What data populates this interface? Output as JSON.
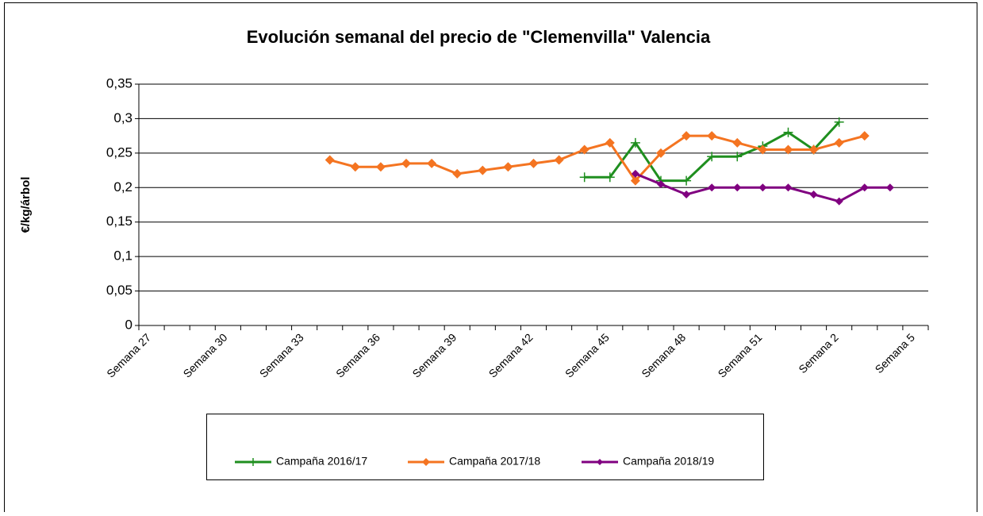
{
  "chart_data": {
    "type": "line",
    "title": "Evolución semanal del precio de \"Clemenvilla\" Valencia",
    "y_label": "€/kg/árbol",
    "categories": [
      "Semana 27",
      null,
      null,
      "Semana 30",
      null,
      null,
      "Semana 33",
      null,
      null,
      "Semana 36",
      null,
      null,
      "Semana 39",
      null,
      null,
      "Semana 42",
      null,
      null,
      "Semana 45",
      null,
      null,
      "Semana 48",
      null,
      null,
      "Semana 51",
      null,
      null,
      "Semana 2",
      null,
      null,
      "Semana 5"
    ],
    "series": [
      {
        "name": "Campaña 2016/17",
        "color": "#1f8f1f",
        "marker": "plus",
        "values": [
          null,
          null,
          null,
          null,
          null,
          null,
          null,
          null,
          null,
          null,
          null,
          null,
          null,
          null,
          null,
          null,
          null,
          0.215,
          0.215,
          0.265,
          0.21,
          0.21,
          0.245,
          0.245,
          0.26,
          0.28,
          0.255,
          0.295,
          null,
          null,
          null
        ]
      },
      {
        "name": "Campaña 2017/18",
        "color": "#f47421",
        "marker": "diamond",
        "values": [
          null,
          null,
          null,
          null,
          null,
          null,
          null,
          0.24,
          0.23,
          0.23,
          0.235,
          0.235,
          0.22,
          0.225,
          0.23,
          0.235,
          0.24,
          0.255,
          0.265,
          0.21,
          0.25,
          0.275,
          0.275,
          0.265,
          0.255,
          0.255,
          0.255,
          0.265,
          0.275,
          null,
          null
        ]
      },
      {
        "name": "Campaña 2018/19",
        "color": "#800080",
        "marker": "diamond",
        "values": [
          null,
          null,
          null,
          null,
          null,
          null,
          null,
          null,
          null,
          null,
          null,
          null,
          null,
          null,
          null,
          null,
          null,
          null,
          null,
          0.22,
          0.205,
          0.19,
          0.2,
          0.2,
          0.2,
          0.2,
          0.19,
          0.18,
          0.2,
          0.2,
          null
        ]
      }
    ],
    "ylim": [
      0,
      0.35
    ],
    "yticks": [
      0,
      {
        "value": 0.05,
        "label": "0,05"
      },
      {
        "value": 0.1,
        "label": "0,1"
      },
      {
        "value": 0.15,
        "label": "0,15"
      },
      {
        "value": 0.2,
        "label": "0,2"
      },
      {
        "value": 0.25,
        "label": "0,25"
      },
      {
        "value": 0.3,
        "label": "0,3"
      },
      {
        "value": 0.35,
        "label": "0,35"
      }
    ],
    "grid": true,
    "legend": "bottom"
  }
}
